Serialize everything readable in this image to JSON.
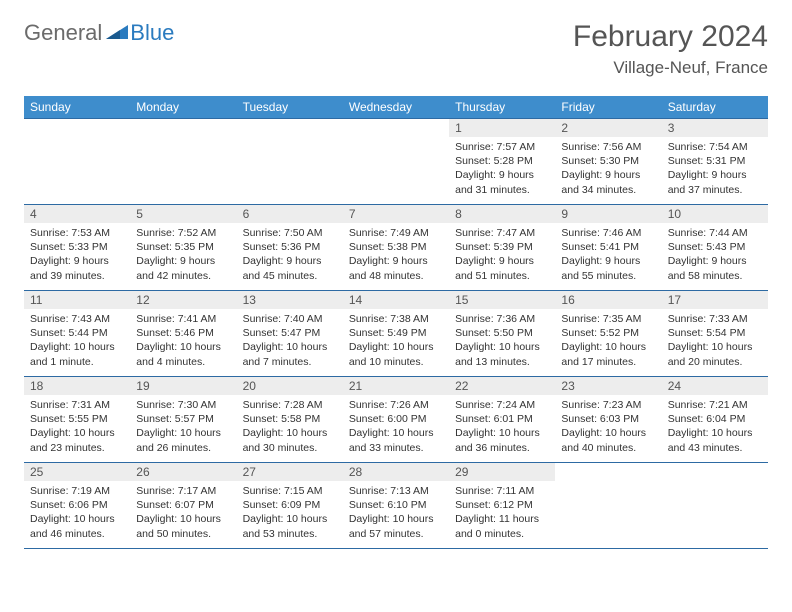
{
  "logo": {
    "text_gray": "General",
    "text_blue": "Blue"
  },
  "header": {
    "title": "February 2024",
    "location": "Village-Neuf, France"
  },
  "colors": {
    "header_bg": "#3e8dcc",
    "header_text": "#ffffff",
    "row_border": "#2d6aa3",
    "daynum_bg": "#ededed",
    "logo_gray": "#6b6b6b",
    "logo_blue": "#2b7bbf"
  },
  "weekdays": [
    "Sunday",
    "Monday",
    "Tuesday",
    "Wednesday",
    "Thursday",
    "Friday",
    "Saturday"
  ],
  "weeks": [
    [
      null,
      null,
      null,
      null,
      {
        "n": "1",
        "sr": "Sunrise: 7:57 AM",
        "ss": "Sunset: 5:28 PM",
        "dl": "Daylight: 9 hours and 31 minutes."
      },
      {
        "n": "2",
        "sr": "Sunrise: 7:56 AM",
        "ss": "Sunset: 5:30 PM",
        "dl": "Daylight: 9 hours and 34 minutes."
      },
      {
        "n": "3",
        "sr": "Sunrise: 7:54 AM",
        "ss": "Sunset: 5:31 PM",
        "dl": "Daylight: 9 hours and 37 minutes."
      }
    ],
    [
      {
        "n": "4",
        "sr": "Sunrise: 7:53 AM",
        "ss": "Sunset: 5:33 PM",
        "dl": "Daylight: 9 hours and 39 minutes."
      },
      {
        "n": "5",
        "sr": "Sunrise: 7:52 AM",
        "ss": "Sunset: 5:35 PM",
        "dl": "Daylight: 9 hours and 42 minutes."
      },
      {
        "n": "6",
        "sr": "Sunrise: 7:50 AM",
        "ss": "Sunset: 5:36 PM",
        "dl": "Daylight: 9 hours and 45 minutes."
      },
      {
        "n": "7",
        "sr": "Sunrise: 7:49 AM",
        "ss": "Sunset: 5:38 PM",
        "dl": "Daylight: 9 hours and 48 minutes."
      },
      {
        "n": "8",
        "sr": "Sunrise: 7:47 AM",
        "ss": "Sunset: 5:39 PM",
        "dl": "Daylight: 9 hours and 51 minutes."
      },
      {
        "n": "9",
        "sr": "Sunrise: 7:46 AM",
        "ss": "Sunset: 5:41 PM",
        "dl": "Daylight: 9 hours and 55 minutes."
      },
      {
        "n": "10",
        "sr": "Sunrise: 7:44 AM",
        "ss": "Sunset: 5:43 PM",
        "dl": "Daylight: 9 hours and 58 minutes."
      }
    ],
    [
      {
        "n": "11",
        "sr": "Sunrise: 7:43 AM",
        "ss": "Sunset: 5:44 PM",
        "dl": "Daylight: 10 hours and 1 minute."
      },
      {
        "n": "12",
        "sr": "Sunrise: 7:41 AM",
        "ss": "Sunset: 5:46 PM",
        "dl": "Daylight: 10 hours and 4 minutes."
      },
      {
        "n": "13",
        "sr": "Sunrise: 7:40 AM",
        "ss": "Sunset: 5:47 PM",
        "dl": "Daylight: 10 hours and 7 minutes."
      },
      {
        "n": "14",
        "sr": "Sunrise: 7:38 AM",
        "ss": "Sunset: 5:49 PM",
        "dl": "Daylight: 10 hours and 10 minutes."
      },
      {
        "n": "15",
        "sr": "Sunrise: 7:36 AM",
        "ss": "Sunset: 5:50 PM",
        "dl": "Daylight: 10 hours and 13 minutes."
      },
      {
        "n": "16",
        "sr": "Sunrise: 7:35 AM",
        "ss": "Sunset: 5:52 PM",
        "dl": "Daylight: 10 hours and 17 minutes."
      },
      {
        "n": "17",
        "sr": "Sunrise: 7:33 AM",
        "ss": "Sunset: 5:54 PM",
        "dl": "Daylight: 10 hours and 20 minutes."
      }
    ],
    [
      {
        "n": "18",
        "sr": "Sunrise: 7:31 AM",
        "ss": "Sunset: 5:55 PM",
        "dl": "Daylight: 10 hours and 23 minutes."
      },
      {
        "n": "19",
        "sr": "Sunrise: 7:30 AM",
        "ss": "Sunset: 5:57 PM",
        "dl": "Daylight: 10 hours and 26 minutes."
      },
      {
        "n": "20",
        "sr": "Sunrise: 7:28 AM",
        "ss": "Sunset: 5:58 PM",
        "dl": "Daylight: 10 hours and 30 minutes."
      },
      {
        "n": "21",
        "sr": "Sunrise: 7:26 AM",
        "ss": "Sunset: 6:00 PM",
        "dl": "Daylight: 10 hours and 33 minutes."
      },
      {
        "n": "22",
        "sr": "Sunrise: 7:24 AM",
        "ss": "Sunset: 6:01 PM",
        "dl": "Daylight: 10 hours and 36 minutes."
      },
      {
        "n": "23",
        "sr": "Sunrise: 7:23 AM",
        "ss": "Sunset: 6:03 PM",
        "dl": "Daylight: 10 hours and 40 minutes."
      },
      {
        "n": "24",
        "sr": "Sunrise: 7:21 AM",
        "ss": "Sunset: 6:04 PM",
        "dl": "Daylight: 10 hours and 43 minutes."
      }
    ],
    [
      {
        "n": "25",
        "sr": "Sunrise: 7:19 AM",
        "ss": "Sunset: 6:06 PM",
        "dl": "Daylight: 10 hours and 46 minutes."
      },
      {
        "n": "26",
        "sr": "Sunrise: 7:17 AM",
        "ss": "Sunset: 6:07 PM",
        "dl": "Daylight: 10 hours and 50 minutes."
      },
      {
        "n": "27",
        "sr": "Sunrise: 7:15 AM",
        "ss": "Sunset: 6:09 PM",
        "dl": "Daylight: 10 hours and 53 minutes."
      },
      {
        "n": "28",
        "sr": "Sunrise: 7:13 AM",
        "ss": "Sunset: 6:10 PM",
        "dl": "Daylight: 10 hours and 57 minutes."
      },
      {
        "n": "29",
        "sr": "Sunrise: 7:11 AM",
        "ss": "Sunset: 6:12 PM",
        "dl": "Daylight: 11 hours and 0 minutes."
      },
      null,
      null
    ]
  ]
}
